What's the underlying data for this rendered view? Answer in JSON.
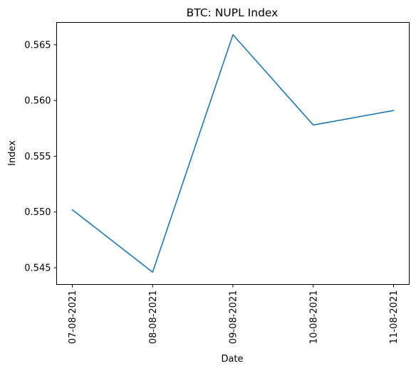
{
  "chart_data": {
    "type": "line",
    "title": "BTC: NUPL Index",
    "xlabel": "Date",
    "ylabel": "Index",
    "categories": [
      "07-08-2021",
      "08-08-2021",
      "09-08-2021",
      "10-08-2021",
      "11-08-2021"
    ],
    "series": [
      {
        "values": [
          0.5502,
          0.5446,
          0.5659,
          0.5578,
          0.5591
        ]
      }
    ],
    "yticks": [
      0.545,
      0.55,
      0.555,
      0.56,
      0.565
    ],
    "ytick_labels": [
      "0.545",
      "0.550",
      "0.555",
      "0.560",
      "0.565"
    ],
    "ylim": [
      0.5435,
      0.567
    ],
    "grid": false,
    "line_color": "#1f77b4"
  }
}
